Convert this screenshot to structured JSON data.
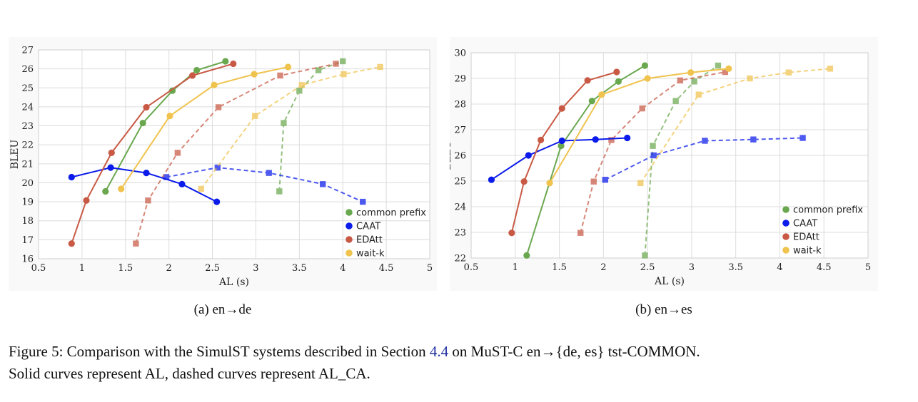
{
  "chart_data": [
    {
      "type": "line",
      "subcaption": "(a) en→de",
      "xlabel": "AL (s)",
      "ylabel": "BLEU",
      "xlim": [
        0.5,
        5
      ],
      "ylim": [
        16,
        27
      ],
      "xticks": [
        "0.5",
        "1",
        "1.5",
        "2",
        "2.5",
        "3",
        "3.5",
        "4",
        "4.5",
        "5"
      ],
      "yticks": [
        "16",
        "17",
        "18",
        "19",
        "20",
        "21",
        "22",
        "23",
        "24",
        "25",
        "26",
        "27"
      ],
      "grid": true,
      "legend_position": "bottom-right",
      "legend": [
        "common prefix",
        "CAAT",
        "EDAtt",
        "wait-k"
      ],
      "colors": {
        "common prefix": "#6aa84f",
        "CAAT": "#0b1bea",
        "EDAtt": "#c85a45",
        "wait-k": "#f0c34e"
      },
      "series": [
        {
          "system": "common prefix",
          "metric": "AL",
          "x": [
            1.27,
            1.7,
            2.04,
            2.32,
            2.65
          ],
          "y": [
            19.55,
            23.15,
            24.85,
            25.93,
            26.4
          ]
        },
        {
          "system": "common prefix",
          "metric": "AL_CA",
          "x": [
            3.27,
            3.32,
            3.5,
            3.72,
            4.0
          ],
          "y": [
            19.55,
            23.15,
            24.85,
            25.93,
            26.4
          ]
        },
        {
          "system": "CAAT",
          "metric": "AL",
          "x": [
            0.88,
            1.33,
            1.74,
            2.15,
            2.55
          ],
          "y": [
            20.3,
            20.8,
            20.52,
            19.93,
            19.0
          ]
        },
        {
          "system": "CAAT",
          "metric": "AL_CA",
          "x": [
            1.97,
            2.56,
            3.15,
            3.77,
            4.23
          ],
          "y": [
            20.3,
            20.8,
            20.52,
            19.93,
            19.0
          ]
        },
        {
          "system": "EDAtt",
          "metric": "AL",
          "x": [
            0.88,
            1.05,
            1.34,
            1.74,
            2.27,
            2.74
          ],
          "y": [
            16.8,
            19.07,
            21.58,
            23.98,
            25.65,
            26.27
          ]
        },
        {
          "system": "EDAtt",
          "metric": "AL_CA",
          "x": [
            1.62,
            1.76,
            2.1,
            2.57,
            3.28,
            3.92
          ],
          "y": [
            16.8,
            19.07,
            21.58,
            23.98,
            25.65,
            26.27
          ]
        },
        {
          "system": "wait-k",
          "metric": "AL",
          "x": [
            1.45,
            2.01,
            2.52,
            2.98,
            3.37
          ],
          "y": [
            19.68,
            23.52,
            25.15,
            25.72,
            26.1
          ]
        },
        {
          "system": "wait-k",
          "metric": "AL_CA",
          "x": [
            2.37,
            2.99,
            3.53,
            4.01,
            4.43
          ],
          "y": [
            19.68,
            23.52,
            25.15,
            25.72,
            26.1
          ]
        }
      ]
    },
    {
      "type": "line",
      "subcaption": "(b) en→es",
      "xlabel": "AL (s)",
      "ylabel": "BLEU",
      "xlim": [
        0.5,
        5
      ],
      "ylim": [
        22,
        30
      ],
      "xticks": [
        "0.5",
        "1",
        "1.5",
        "2",
        "2.5",
        "3",
        "3.5",
        "4",
        "4.5",
        "5"
      ],
      "yticks": [
        "22",
        "23",
        "24",
        "25",
        "26",
        "27",
        "28",
        "29",
        "30"
      ],
      "grid": true,
      "legend_position": "bottom-right",
      "legend": [
        "common prefix",
        "CAAT",
        "EDAtt",
        "wait-k"
      ],
      "colors": {
        "common prefix": "#6aa84f",
        "CAAT": "#0b1bea",
        "EDAtt": "#c85a45",
        "wait-k": "#f0c34e"
      },
      "series": [
        {
          "system": "common prefix",
          "metric": "AL",
          "x": [
            1.13,
            1.52,
            1.87,
            2.17,
            2.47
          ],
          "y": [
            22.1,
            26.37,
            28.12,
            28.88,
            29.5
          ]
        },
        {
          "system": "common prefix",
          "metric": "AL_CA",
          "x": [
            2.47,
            2.56,
            2.82,
            3.03,
            3.3
          ],
          "y": [
            22.1,
            26.37,
            28.12,
            28.88,
            29.5
          ]
        },
        {
          "system": "CAAT",
          "metric": "AL",
          "x": [
            0.73,
            1.15,
            1.53,
            1.91,
            2.27
          ],
          "y": [
            25.05,
            26.0,
            26.57,
            26.62,
            26.68
          ]
        },
        {
          "system": "CAAT",
          "metric": "AL_CA",
          "x": [
            2.02,
            2.57,
            3.15,
            3.7,
            4.26
          ],
          "y": [
            25.05,
            26.0,
            26.57,
            26.62,
            26.68
          ]
        },
        {
          "system": "EDAtt",
          "metric": "AL",
          "x": [
            0.96,
            1.1,
            1.29,
            1.53,
            1.82,
            2.15
          ],
          "y": [
            22.98,
            24.98,
            26.6,
            27.83,
            28.92,
            29.25
          ]
        },
        {
          "system": "EDAtt",
          "metric": "AL_CA",
          "x": [
            1.74,
            1.89,
            2.09,
            2.44,
            2.87,
            3.38
          ],
          "y": [
            22.98,
            24.98,
            26.6,
            27.83,
            28.92,
            29.25
          ]
        },
        {
          "system": "wait-k",
          "metric": "AL",
          "x": [
            1.39,
            1.98,
            2.5,
            2.99,
            3.42
          ],
          "y": [
            24.92,
            28.37,
            29.0,
            29.23,
            29.38
          ]
        },
        {
          "system": "wait-k",
          "metric": "AL_CA",
          "x": [
            2.42,
            3.08,
            3.66,
            4.1,
            4.57
          ],
          "y": [
            24.92,
            28.37,
            29.0,
            29.23,
            29.38
          ]
        }
      ]
    }
  ],
  "caption": {
    "line1_a": "Figure 5: Comparison with the SimulST systems described in Section ",
    "line1_ref": "4.4",
    "line1_b": " on MuST-C en→{de, es} tst-COMMON.",
    "line2": "Solid curves represent AL, dashed curves represent AL_CA."
  }
}
